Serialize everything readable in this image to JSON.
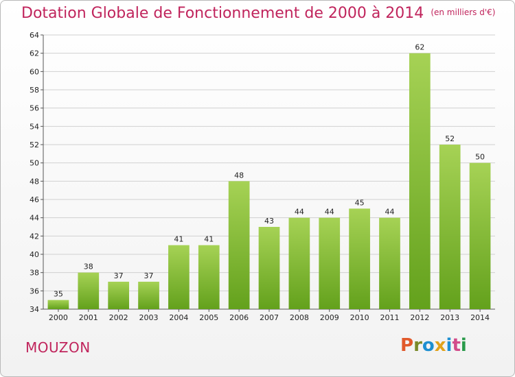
{
  "header": {
    "title": "Dotation Globale de Fonctionnement de 2000 à 2014",
    "unit": "(en milliers d'€)"
  },
  "footer": {
    "place": "MOUZON",
    "logo": "Proxiti"
  },
  "colors": {
    "title": "#c0245c",
    "bar_light": "#a6d255",
    "bar_dark": "#63a11c",
    "logo_letters": [
      "#e1592a",
      "#7a8a2a",
      "#1d8fd1",
      "#e1a21b",
      "#1d8fd1",
      "#d24b8a",
      "#2a9a4a"
    ]
  },
  "chart_data": {
    "type": "bar",
    "title": "Dotation Globale de Fonctionnement de 2000 à 2014",
    "subtitle": "(en milliers d'€)",
    "xlabel": "",
    "ylabel": "",
    "categories": [
      "2000",
      "2001",
      "2002",
      "2003",
      "2004",
      "2005",
      "2006",
      "2007",
      "2008",
      "2009",
      "2010",
      "2011",
      "2012",
      "2013",
      "2014"
    ],
    "values": [
      35,
      38,
      37,
      37,
      41,
      41,
      48,
      43,
      44,
      44,
      45,
      44,
      62,
      52,
      50
    ],
    "ylim": [
      34,
      64
    ],
    "yticks": [
      34,
      36,
      38,
      40,
      42,
      44,
      46,
      48,
      50,
      52,
      54,
      56,
      58,
      60,
      62,
      64
    ],
    "grid": true,
    "legend": "none"
  }
}
